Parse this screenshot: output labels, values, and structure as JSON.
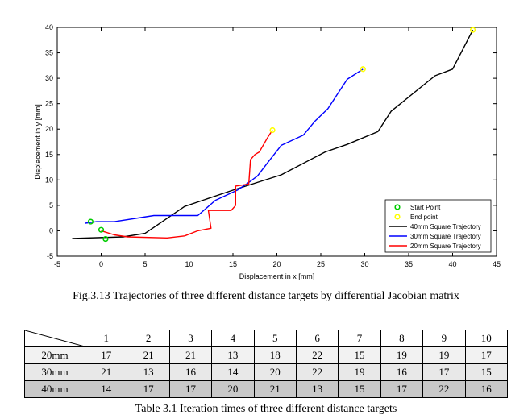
{
  "figure": {
    "caption": "Fig.3.13 Trajectories of three different distance targets by differential Jacobian matrix"
  },
  "chart_data": {
    "type": "line",
    "xlabel": "Displacement in x [mm]",
    "ylabel": "Displacement in y [mm]",
    "xlim": [
      -5,
      45
    ],
    "ylim": [
      -5,
      40
    ],
    "xticks": [
      -5,
      0,
      5,
      10,
      15,
      20,
      25,
      30,
      35,
      40,
      45
    ],
    "yticks": [
      -5,
      0,
      5,
      10,
      15,
      20,
      25,
      30,
      35,
      40
    ],
    "grid": false,
    "legend_position": "bottom-right",
    "legend": [
      "Start Point",
      "End point",
      "40mm Square Trajectory",
      "30mm Square Trajectory",
      "20mm Square Trajectory"
    ],
    "series": [
      {
        "name": "40mm Square Trajectory",
        "color": "#000000",
        "x": [
          -3.3,
          2.5,
          5,
          9.5,
          15,
          20.5,
          25.5,
          28,
          31.5,
          33,
          38,
          40,
          42.3
        ],
        "y": [
          -1.5,
          -1.2,
          -0.5,
          4.8,
          8,
          11,
          15.5,
          17,
          19.5,
          23.5,
          30.5,
          31.8,
          39.5
        ]
      },
      {
        "name": "30mm Square Trajectory",
        "color": "#0000ff",
        "x": [
          -1.8,
          -0.5,
          1.5,
          6,
          11,
          13,
          15.5,
          16.8,
          17.8,
          19,
          20.5,
          23,
          24.3,
          25.8,
          28,
          29.8
        ],
        "y": [
          1.5,
          1.8,
          1.8,
          3,
          3,
          6,
          8,
          9.5,
          10.8,
          13.5,
          16.8,
          18.8,
          21.5,
          24,
          29.8,
          31.8
        ]
      },
      {
        "name": "20mm Square Trajectory",
        "color": "#ff0000",
        "x": [
          0,
          1.5,
          3,
          7.5,
          9.5,
          11,
          12.5,
          12.2,
          14.8,
          15.3,
          15.3,
          16.8,
          17,
          17.5,
          18,
          19,
          19.5
        ],
        "y": [
          0,
          -0.8,
          -1.2,
          -1.4,
          -1,
          0,
          0.5,
          4,
          4,
          5,
          8.8,
          9.2,
          14,
          15,
          15.5,
          18.5,
          19.8
        ]
      }
    ],
    "start_points": [
      {
        "x": -1.2,
        "y": 1.8
      },
      {
        "x": 0,
        "y": 0.2
      },
      {
        "x": 0.5,
        "y": -1.6
      }
    ],
    "end_points": [
      {
        "x": 19.5,
        "y": 19.8
      },
      {
        "x": 29.8,
        "y": 31.8
      },
      {
        "x": 42.3,
        "y": 39.5
      }
    ],
    "start_color": "#00cc00",
    "end_color": "#ffff00"
  },
  "table": {
    "caption": "Table 3.1 Iteration times of three different distance targets",
    "headers": [
      "1",
      "2",
      "3",
      "4",
      "5",
      "6",
      "7",
      "8",
      "9",
      "10"
    ],
    "rows": [
      {
        "label": "20mm",
        "values": [
          "17",
          "21",
          "21",
          "13",
          "18",
          "22",
          "15",
          "19",
          "19",
          "17"
        ]
      },
      {
        "label": "30mm",
        "values": [
          "21",
          "13",
          "16",
          "14",
          "20",
          "22",
          "19",
          "16",
          "17",
          "15"
        ]
      },
      {
        "label": "40mm",
        "values": [
          "14",
          "17",
          "17",
          "20",
          "21",
          "13",
          "15",
          "17",
          "22",
          "16"
        ]
      }
    ]
  }
}
